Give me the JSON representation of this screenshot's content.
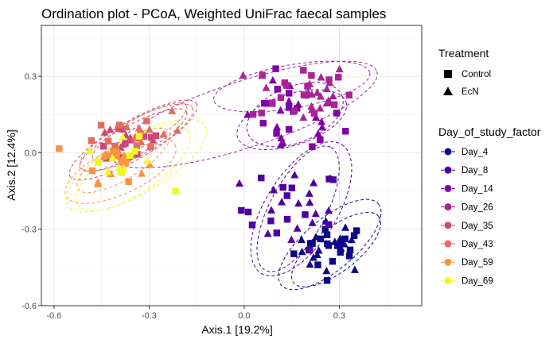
{
  "chart_data": {
    "type": "scatter",
    "title": "Ordination plot - PCoA, Weighted UniFrac faecal samples",
    "xlabel": "Axis.1   [19.2%]",
    "ylabel": "Axis.2   [12.4%]",
    "xlim": [
      -0.64,
      0.56
    ],
    "ylim": [
      -0.6,
      0.5
    ],
    "x_ticks": [
      -0.6,
      -0.3,
      0.0,
      0.3
    ],
    "x_tick_labels": [
      "-0.6",
      "-0.3",
      "0.0",
      "0.3"
    ],
    "y_ticks": [
      -0.6,
      -0.3,
      0.0,
      0.3
    ],
    "y_tick_labels": [
      "-0.6",
      "-0.3",
      "0.0",
      "0.3"
    ],
    "grid": true,
    "shape_legend": {
      "title": "Treatment",
      "items": [
        {
          "label": "Control",
          "shape": "square"
        },
        {
          "label": "EcN",
          "shape": "triangle"
        }
      ]
    },
    "color_legend": {
      "title": "Day_of_study_factor",
      "items": [
        {
          "label": "Day_4",
          "color": "#0d0887"
        },
        {
          "label": "Day_8",
          "color": "#4c02a1"
        },
        {
          "label": "Day_14",
          "color": "#7e03a8"
        },
        {
          "label": "Day_26",
          "color": "#a92395"
        },
        {
          "label": "Day_35",
          "color": "#cc4778"
        },
        {
          "label": "Day_43",
          "color": "#e56b5d"
        },
        {
          "label": "Day_59",
          "color": "#f89441"
        },
        {
          "label": "Day_69",
          "color": "#f0f921"
        }
      ]
    },
    "groups": [
      {
        "day": "Day_4",
        "color": "#0d0887",
        "center": [
          0.28,
          -0.37
        ],
        "spread": [
          0.06,
          0.05
        ],
        "n_control": 20,
        "n_ecn": 16,
        "ellipses": [
          {
            "cx": 0.29,
            "cy": -0.38,
            "rx": 0.17,
            "ry": 0.085,
            "angle": -38
          },
          {
            "cx": 0.27,
            "cy": -0.36,
            "rx": 0.2,
            "ry": 0.1,
            "angle": -40
          }
        ]
      },
      {
        "day": "Day_8",
        "color": "#4c02a1",
        "center": [
          0.15,
          -0.22
        ],
        "spread": [
          0.08,
          0.08
        ],
        "n_control": 15,
        "n_ecn": 16,
        "ellipses": [
          {
            "cx": 0.17,
            "cy": -0.22,
            "rx": 0.22,
            "ry": 0.11,
            "angle": -62
          },
          {
            "cx": 0.18,
            "cy": -0.22,
            "rx": 0.24,
            "ry": 0.14,
            "angle": -58
          }
        ]
      },
      {
        "day": "Day_14",
        "color": "#7e03a8",
        "center": [
          0.15,
          0.13
        ],
        "spread": [
          0.08,
          0.08
        ],
        "n_control": 15,
        "n_ecn": 17,
        "ellipses": [
          {
            "cx": 0.15,
            "cy": 0.13,
            "rx": 0.18,
            "ry": 0.1,
            "angle": -18
          },
          {
            "cx": 0.16,
            "cy": 0.15,
            "rx": 0.16,
            "ry": 0.11,
            "angle": -22
          }
        ]
      },
      {
        "day": "Day_26",
        "color": "#a92395",
        "center": [
          0.18,
          0.24
        ],
        "spread": [
          0.08,
          0.06
        ],
        "n_control": 18,
        "n_ecn": 18,
        "ellipses": [
          {
            "cx": 0.15,
            "cy": 0.26,
            "rx": 0.25,
            "ry": 0.085,
            "angle": -10
          },
          {
            "cx": 0.0,
            "cy": 0.15,
            "rx": 0.44,
            "ry": 0.13,
            "angle": -18
          }
        ]
      },
      {
        "day": "Day_35",
        "color": "#cc4778",
        "center": [
          -0.37,
          0.04
        ],
        "spread": [
          0.07,
          0.05
        ],
        "n_control": 10,
        "n_ecn": 10,
        "ellipses": [
          {
            "cx": -0.35,
            "cy": 0.05,
            "rx": 0.19,
            "ry": 0.06,
            "angle": -28
          },
          {
            "cx": -0.35,
            "cy": 0.05,
            "rx": 0.23,
            "ry": 0.075,
            "angle": -30
          }
        ]
      },
      {
        "day": "Day_43",
        "color": "#e56b5d",
        "center": [
          -0.33,
          0.09
        ],
        "spread": [
          0.07,
          0.05
        ],
        "n_control": 9,
        "n_ecn": 9,
        "ellipses": [
          {
            "cx": -0.33,
            "cy": 0.08,
            "rx": 0.17,
            "ry": 0.055,
            "angle": -30
          },
          {
            "cx": -0.34,
            "cy": 0.06,
            "rx": 0.2,
            "ry": 0.07,
            "angle": -28
          }
        ]
      },
      {
        "day": "Day_59",
        "color": "#f89441",
        "center": [
          -0.41,
          -0.03
        ],
        "spread": [
          0.05,
          0.04
        ],
        "n_control": 9,
        "n_ecn": 9,
        "ellipses": [
          {
            "cx": -0.38,
            "cy": -0.03,
            "rx": 0.17,
            "ry": 0.07,
            "angle": -32
          },
          {
            "cx": -0.39,
            "cy": -0.07,
            "rx": 0.19,
            "ry": 0.09,
            "angle": -25
          }
        ]
      },
      {
        "day": "Day_69",
        "color": "#f0f921",
        "center": [
          -0.38,
          -0.05
        ],
        "spread": [
          0.06,
          0.05
        ],
        "n_control": 7,
        "n_ecn": 7,
        "ellipses": [
          {
            "cx": -0.35,
            "cy": -0.06,
            "rx": 0.21,
            "ry": 0.1,
            "angle": -34
          },
          {
            "cx": -0.34,
            "cy": -0.05,
            "rx": 0.25,
            "ry": 0.11,
            "angle": -30
          }
        ]
      }
    ]
  }
}
